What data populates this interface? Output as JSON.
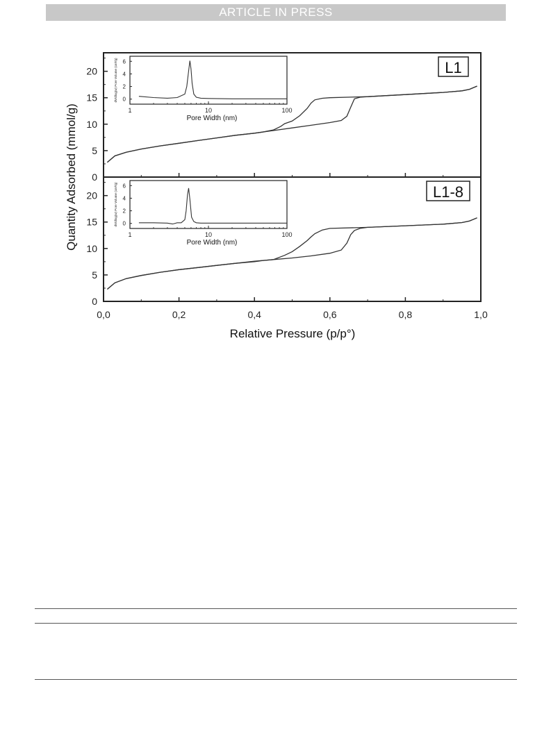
{
  "header": {
    "banner": "ARTICLE IN PRESS"
  },
  "chart_data": [
    {
      "type": "line",
      "panel": "L1",
      "xlim": [
        0,
        1.0
      ],
      "ylim": [
        0,
        23.5
      ],
      "ylabel": "Quantity Adsorbed (mmol/g)",
      "xlabel": "Relative Pressure (p/p°)",
      "yticks": [
        "0",
        "5",
        "10",
        "15",
        "20"
      ],
      "series": [
        {
          "x": [
            0.01,
            0.03,
            0.06,
            0.1,
            0.15,
            0.2,
            0.25,
            0.3,
            0.35,
            0.4,
            0.45,
            0.5,
            0.55,
            0.6,
            0.63,
            0.645,
            0.655,
            0.665,
            0.68,
            0.7,
            0.8,
            0.9,
            0.95,
            0.97,
            0.99
          ],
          "values": [
            2.8,
            4.0,
            4.7,
            5.3,
            5.9,
            6.4,
            6.9,
            7.4,
            7.9,
            8.3,
            8.8,
            9.3,
            9.8,
            10.3,
            10.7,
            11.5,
            13.2,
            14.8,
            15.1,
            15.2,
            15.6,
            16.0,
            16.3,
            16.6,
            17.2
          ]
        },
        {
          "x": [
            0.99,
            0.97,
            0.95,
            0.9,
            0.8,
            0.7,
            0.6,
            0.58,
            0.56,
            0.55,
            0.54,
            0.52,
            0.5,
            0.48,
            0.47,
            0.45,
            0.42,
            0.4,
            0.35,
            0.3,
            0.25,
            0.2,
            0.15,
            0.1,
            0.06,
            0.03,
            0.01
          ],
          "values": [
            17.2,
            16.6,
            16.3,
            16.0,
            15.6,
            15.2,
            15.0,
            14.9,
            14.6,
            14.0,
            13.0,
            11.6,
            10.6,
            10.1,
            9.6,
            8.9,
            8.5,
            8.3,
            7.9,
            7.4,
            6.9,
            6.4,
            5.9,
            5.3,
            4.7,
            4.0,
            2.8
          ]
        }
      ],
      "inset": {
        "xlabel": "Pore Width (nm)",
        "ylabel": "dV/dlog(w) Pore Volume (cm³/g)",
        "xticks": [
          "1",
          "10",
          "100"
        ],
        "yticks": [
          "0",
          "2",
          "4",
          "6"
        ],
        "xlim": [
          1,
          100
        ],
        "ylim": [
          -0.8,
          6.8
        ],
        "x": [
          1.3,
          2,
          3,
          4,
          5,
          5.3,
          5.6,
          5.8,
          6.0,
          6.2,
          6.5,
          7,
          8,
          10,
          20,
          50,
          100
        ],
        "values": [
          0.45,
          0.25,
          0.15,
          0.25,
          0.8,
          2.0,
          4.5,
          6.1,
          4.8,
          2.5,
          0.8,
          0.3,
          0.15,
          0.1,
          0.05,
          0.05,
          0.05
        ]
      }
    },
    {
      "type": "line",
      "panel": "L1-8",
      "xlim": [
        0,
        1.0
      ],
      "ylim": [
        0,
        23.5
      ],
      "xticks": [
        "0,0",
        "0,2",
        "0,4",
        "0,6",
        "0,8",
        "1,0"
      ],
      "yticks": [
        "0",
        "5",
        "10",
        "15",
        "20"
      ],
      "series": [
        {
          "x": [
            0.01,
            0.03,
            0.06,
            0.1,
            0.15,
            0.2,
            0.25,
            0.3,
            0.35,
            0.4,
            0.45,
            0.5,
            0.55,
            0.6,
            0.63,
            0.645,
            0.655,
            0.665,
            0.68,
            0.7,
            0.8,
            0.9,
            0.95,
            0.97,
            0.99
          ],
          "values": [
            2.3,
            3.5,
            4.3,
            4.9,
            5.5,
            6.0,
            6.4,
            6.8,
            7.2,
            7.6,
            7.9,
            8.2,
            8.6,
            9.1,
            9.7,
            11.0,
            12.6,
            13.4,
            13.8,
            14.0,
            14.3,
            14.6,
            14.9,
            15.2,
            15.8
          ]
        },
        {
          "x": [
            0.99,
            0.97,
            0.95,
            0.9,
            0.8,
            0.7,
            0.6,
            0.58,
            0.56,
            0.55,
            0.54,
            0.52,
            0.5,
            0.48,
            0.45,
            0.42,
            0.4,
            0.35,
            0.3,
            0.25,
            0.2,
            0.15,
            0.1,
            0.06,
            0.03,
            0.01
          ],
          "values": [
            15.8,
            15.2,
            14.9,
            14.6,
            14.3,
            14.0,
            13.8,
            13.5,
            12.8,
            12.2,
            11.5,
            10.4,
            9.4,
            8.7,
            7.9,
            7.7,
            7.5,
            7.2,
            6.8,
            6.4,
            6.0,
            5.5,
            4.9,
            4.3,
            3.5,
            2.3
          ]
        }
      ],
      "inset": {
        "xlabel": "Pore Width (nm)",
        "ylabel": "dV/dlog(w) Pore Volume (cm³/g)",
        "xticks": [
          "1",
          "10",
          "100"
        ],
        "yticks": [
          "0",
          "2",
          "4",
          "6"
        ],
        "xlim": [
          1,
          100
        ],
        "ylim": [
          -0.8,
          6.8
        ],
        "x": [
          1.3,
          2,
          3,
          3.5,
          4,
          4.5,
          5,
          5.2,
          5.4,
          5.6,
          5.8,
          6.1,
          6.5,
          7,
          8,
          10,
          20,
          50,
          100
        ],
        "values": [
          0.1,
          0.1,
          0.05,
          -0.1,
          0.1,
          0.1,
          0.6,
          2.0,
          4.5,
          5.6,
          3.8,
          1.0,
          0.3,
          0.1,
          0.05,
          0.05,
          0.05,
          0.05,
          0.05
        ]
      }
    }
  ]
}
